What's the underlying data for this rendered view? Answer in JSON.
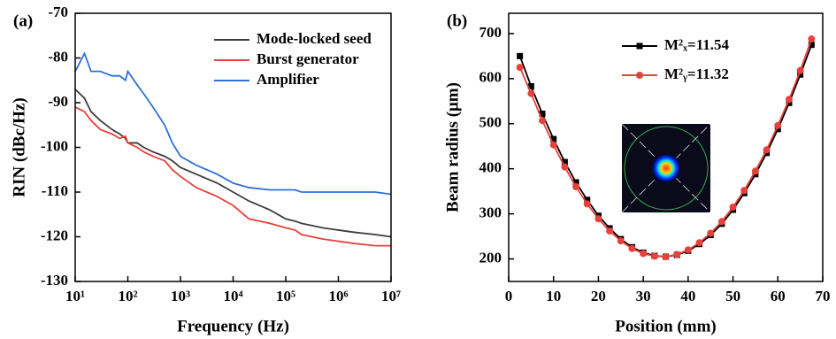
{
  "chart_data": [
    {
      "type": "line",
      "panel_label": "(a)",
      "xlabel": "Frequency (Hz)",
      "ylabel": "RIN (dBc/Hz)",
      "log_x": true,
      "legend": "upper right",
      "x": [
        10,
        15,
        20,
        30,
        50,
        70,
        90,
        100,
        150,
        200,
        300,
        500,
        700,
        1000,
        2000,
        5000,
        10000,
        20000,
        50000,
        100000,
        150000,
        200000,
        500000,
        1000000,
        2000000,
        5000000,
        10000000
      ],
      "xlim": [
        10,
        10000000
      ],
      "xticks": [
        {
          "value": 10,
          "label": "10¹"
        },
        {
          "value": 100,
          "label": "10²"
        },
        {
          "value": 1000,
          "label": "10³"
        },
        {
          "value": 10000,
          "label": "10⁴"
        },
        {
          "value": 100000,
          "label": "10⁵"
        },
        {
          "value": 1000000,
          "label": "10⁶"
        },
        {
          "value": 10000000,
          "label": "10⁷"
        }
      ],
      "ylim": [
        -130,
        -70
      ],
      "yticks": [
        -130,
        -120,
        -110,
        -100,
        -90,
        -80,
        -70
      ],
      "series": [
        {
          "name": "Mode-locked seed",
          "color": "#3d3d3d",
          "values": [
            -87,
            -89,
            -92,
            -94,
            -96,
            -97,
            -98,
            -99,
            -99,
            -100,
            -101,
            -102,
            -103,
            -104.5,
            -106,
            -108,
            -110,
            -112,
            -114,
            -116,
            -116.5,
            -117,
            -118,
            -118.5,
            -119,
            -119.5,
            -120
          ]
        },
        {
          "name": "Burst generator",
          "color": "#e8403a",
          "values": [
            -91,
            -92,
            -94,
            -96,
            -97,
            -98,
            -97.5,
            -99,
            -100,
            -101,
            -102,
            -103,
            -105,
            -106.5,
            -109,
            -111,
            -113,
            -116,
            -117,
            -118,
            -118.5,
            -119.5,
            -120.5,
            -121,
            -121.5,
            -122,
            -122
          ]
        },
        {
          "name": "Amplifier",
          "color": "#2f6fd6",
          "values": [
            -83,
            -79,
            -83,
            -83,
            -84,
            -84,
            -85,
            -83,
            -86,
            -88,
            -91,
            -95,
            -99,
            -102,
            -104,
            -106,
            -108,
            -109,
            -109.5,
            -109.5,
            -109.5,
            -110,
            -110,
            -110,
            -110,
            -110,
            -110.5
          ]
        }
      ]
    },
    {
      "type": "line",
      "panel_label": "(b)",
      "xlabel": "Position (mm)",
      "ylabel": "Beam radius (μm)",
      "log_x": false,
      "legend": "upper left",
      "x": [
        2.5,
        5,
        7.5,
        10,
        12.5,
        15,
        17.5,
        20,
        22.5,
        25,
        27.5,
        30,
        32.5,
        35,
        37.5,
        40,
        42.5,
        45,
        47.5,
        50,
        52.5,
        55,
        57.5,
        60,
        62.5,
        65,
        67.5
      ],
      "xlim": [
        0,
        70
      ],
      "xticks": [
        0,
        10,
        20,
        30,
        40,
        50,
        60,
        70
      ],
      "ylim": [
        150,
        745
      ],
      "yticks": [
        200,
        300,
        400,
        500,
        600,
        700
      ],
      "series": [
        {
          "name": "M²ₓ=11.54",
          "color": "#000000",
          "marker": "square",
          "values": [
            650,
            583,
            522,
            466,
            415,
            370,
            331,
            296,
            268,
            244,
            226,
            214,
            207,
            205,
            209,
            218,
            233,
            253,
            278,
            309,
            346,
            388,
            435,
            488,
            546,
            609,
            675
          ]
        },
        {
          "name": "M²ᵧ=11.32",
          "color": "#e8403a",
          "marker": "circle",
          "values": [
            625,
            567,
            507,
            453,
            404,
            360,
            322,
            289,
            262,
            240,
            223,
            212,
            206,
            205,
            210,
            220,
            236,
            257,
            283,
            315,
            352,
            395,
            442,
            496,
            554,
            618,
            688
          ]
        }
      ]
    }
  ]
}
